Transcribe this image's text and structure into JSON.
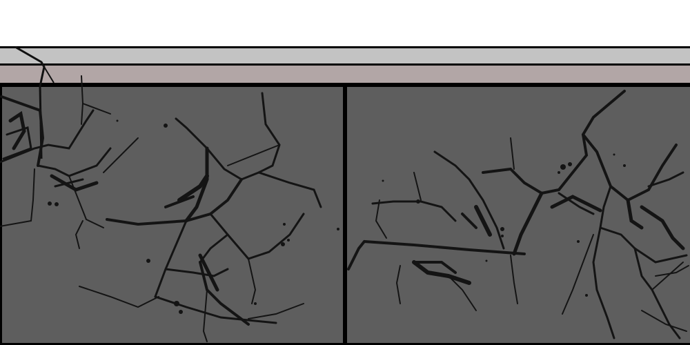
{
  "scene": {
    "type": "cracked-pavement",
    "colors": {
      "sky": "#ffffff",
      "curb_top": "#c3c3c3",
      "curb_band": "#b2a6a6",
      "slab": "#5e5e5e",
      "crack": "#111111",
      "outline": "#000000"
    },
    "slabs": [
      {
        "name": "slab-left"
      },
      {
        "name": "slab-right"
      }
    ]
  }
}
